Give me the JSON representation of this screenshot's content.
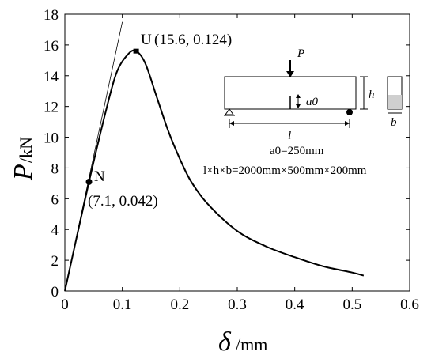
{
  "chart_data": {
    "type": "line",
    "title": "",
    "xlabel": {
      "symbol": "δ",
      "unit": "/mm"
    },
    "ylabel": {
      "symbol": "P",
      "unit": "/kN"
    },
    "xlim": [
      0,
      0.6
    ],
    "ylim": [
      0,
      18
    ],
    "xticks": [
      "0",
      "0.1",
      "0.2",
      "0.3",
      "0.4",
      "0.5",
      "0.6"
    ],
    "yticks": [
      "0",
      "2",
      "4",
      "6",
      "8",
      "10",
      "12",
      "14",
      "16",
      "18"
    ],
    "grid": false,
    "series": [
      {
        "x": [
          0,
          0.02,
          0.042,
          0.07,
          0.09,
          0.11,
          0.124,
          0.14,
          0.16,
          0.18,
          0.2,
          0.22,
          0.25,
          0.3,
          0.35,
          0.4,
          0.45,
          0.5,
          0.52
        ],
        "y": [
          0,
          3.4,
          7.1,
          11.5,
          14.2,
          15.4,
          15.6,
          14.8,
          12.6,
          10.4,
          8.6,
          7.1,
          5.6,
          3.9,
          2.9,
          2.2,
          1.6,
          1.2,
          1.0
        ]
      }
    ],
    "tangent": {
      "x": [
        0,
        0.1
      ],
      "y": [
        0,
        17.5
      ]
    },
    "points": [
      {
        "label": "N",
        "coord": "(7.1, 0.042)",
        "x": 0.042,
        "y": 7.1
      },
      {
        "label": "U",
        "coord": "(15.6, 0.124)",
        "x": 0.124,
        "y": 15.6
      }
    ]
  },
  "inset": {
    "load": "P",
    "notch": "a0",
    "height": "h",
    "span": "l",
    "width": "b",
    "a0_text": "a0=250mm",
    "dims_text": "l×h×b=2000mm×500mm×200mm"
  }
}
